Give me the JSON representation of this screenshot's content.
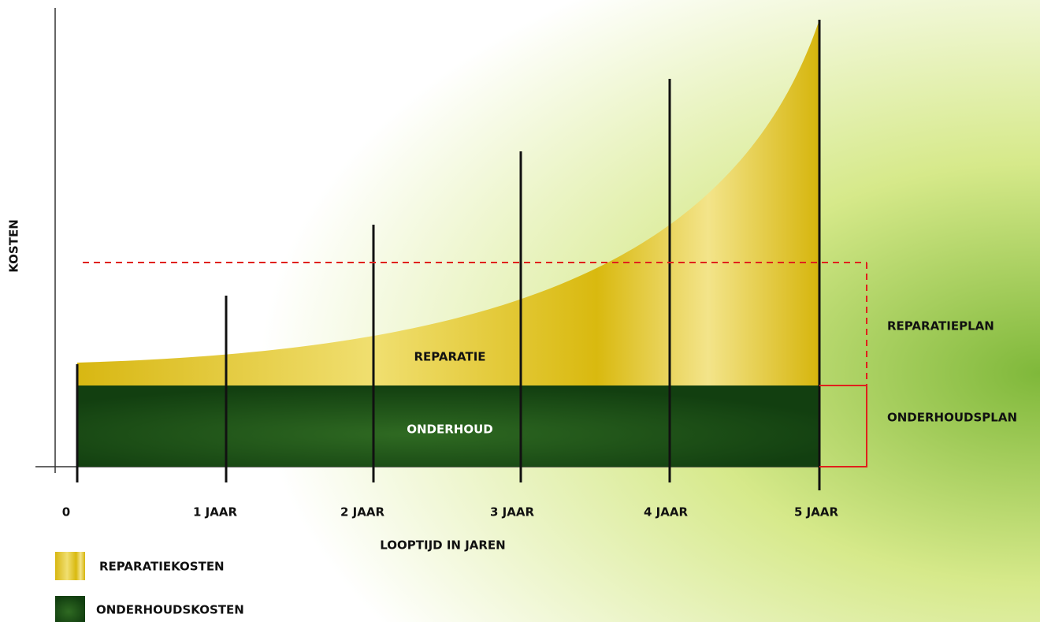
{
  "y_axis_label": "KOSTEN",
  "x_axis_label": "LOOPTIJD IN JAREN",
  "x_tick_labels": [
    "0",
    "1 JAAR",
    "2 JAAR",
    "3 JAAR",
    "4 JAAR",
    "5 JAAR"
  ],
  "areas": {
    "repair": "REPARATIE",
    "maintenance": "ONDERHOUD"
  },
  "brackets": {
    "repair_plan": "REPARATIEPLAN",
    "maintenance_plan": "ONDERHOUDSPLAN"
  },
  "legend": [
    "REPARATIEKOSTEN",
    "ONDERHOUDSKOSTEN"
  ]
}
